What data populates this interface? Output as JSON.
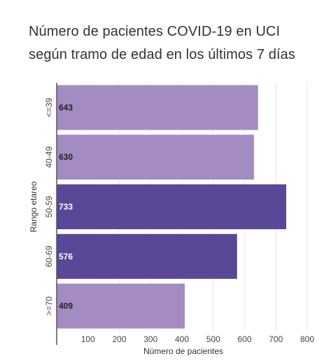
{
  "title_lines": [
    "Número de pacientes COVID-19 en UCI",
    "según tramo de edad en los últimos 7 días"
  ],
  "chart_data": {
    "type": "bar",
    "orientation": "horizontal",
    "categories": [
      "<=39",
      "40-49",
      "50-59",
      "60-69",
      ">=70"
    ],
    "values": [
      643,
      630,
      733,
      576,
      409
    ],
    "xlabel": "Número de pacientes",
    "ylabel": "Rango etareo",
    "xlim": [
      0,
      820
    ],
    "xticks": [
      100,
      200,
      300,
      400,
      500,
      600,
      700,
      800
    ],
    "grid": true,
    "data_labels": true,
    "highlighted": [
      "50-59",
      "60-69"
    ],
    "colors": {
      "bar": "#a48bc2",
      "bar_highlight": "#5b4797",
      "label_light": "#222222",
      "label_dark": "#ffffff",
      "grid": "#e6e6e6",
      "axis": "#555555"
    }
  }
}
